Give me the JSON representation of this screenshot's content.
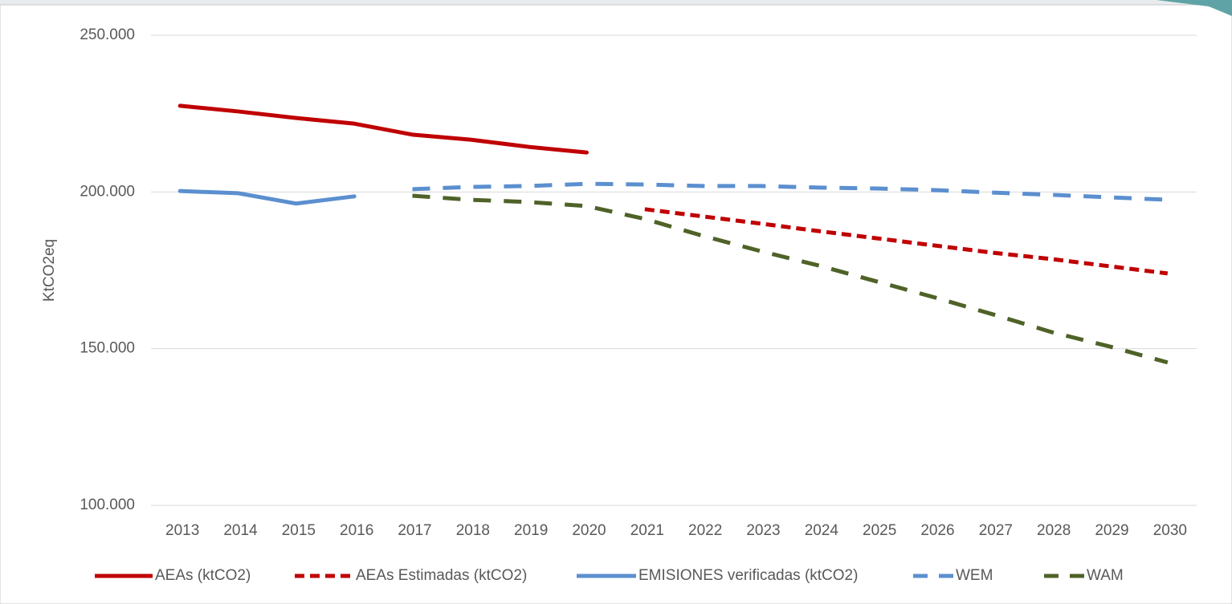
{
  "chart_data": {
    "type": "line",
    "ylabel": "KtCO2eq",
    "categories": [
      "2013",
      "2014",
      "2015",
      "2016",
      "2017",
      "2018",
      "2019",
      "2020",
      "2021",
      "2022",
      "2023",
      "2024",
      "2025",
      "2026",
      "2027",
      "2028",
      "2029",
      "2030"
    ],
    "ylim": [
      100000,
      250000
    ],
    "yticks": [
      {
        "value": 100000,
        "label": "100.000"
      },
      {
        "value": 150000,
        "label": "150.000"
      },
      {
        "value": 200000,
        "label": "200.000"
      },
      {
        "value": 250000,
        "label": "250.000"
      }
    ],
    "grid": true,
    "legend": "bottom",
    "series": [
      {
        "name": "AEAs (ktCO2)",
        "color": "#c00000",
        "style": "solid",
        "values": [
          227500,
          225700,
          223600,
          221800,
          218300,
          216700,
          214400,
          212600,
          null,
          null,
          null,
          null,
          null,
          null,
          null,
          null,
          null,
          null
        ]
      },
      {
        "name": "AEAs Estimadas (ktCO2)",
        "color": "#c00000",
        "style": "dash",
        "values": [
          null,
          null,
          null,
          null,
          null,
          null,
          null,
          null,
          194500,
          192200,
          189900,
          187500,
          185200,
          182900,
          180600,
          178600,
          176300,
          174000
        ]
      },
      {
        "name": "EMISIONES verificadas (ktCO2)",
        "color": "#5b8fcf",
        "style": "solid",
        "values": [
          200300,
          199600,
          196300,
          198600,
          null,
          null,
          null,
          null,
          null,
          null,
          null,
          null,
          null,
          null,
          null,
          null,
          null,
          null
        ]
      },
      {
        "name": "WEM",
        "color": "#5b8fcf",
        "style": "longdash",
        "values": [
          null,
          null,
          null,
          null,
          200900,
          201600,
          201900,
          202600,
          202400,
          201900,
          201900,
          201400,
          201100,
          200600,
          199800,
          199100,
          198300,
          197500
        ]
      },
      {
        "name": "WAM",
        "color": "#4f6228",
        "style": "longdash",
        "values": [
          null,
          null,
          null,
          null,
          198800,
          197500,
          196800,
          195500,
          191400,
          186000,
          181100,
          176500,
          171400,
          166300,
          160900,
          155300,
          150700,
          145600
        ]
      }
    ]
  }
}
